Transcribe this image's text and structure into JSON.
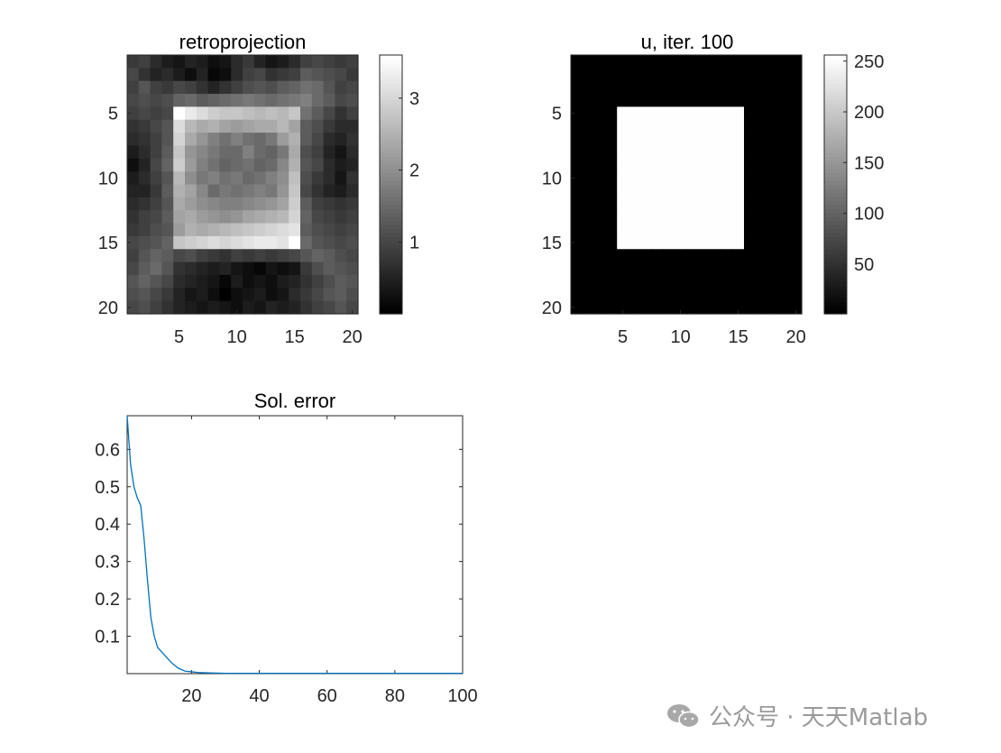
{
  "chart_data": [
    {
      "type": "heatmap",
      "title": "retroprojection",
      "xlim": [
        0.5,
        20.5
      ],
      "ylim": [
        0.5,
        20.5
      ],
      "xticks": [
        5,
        10,
        15,
        20
      ],
      "yticks": [
        5,
        10,
        15,
        20
      ],
      "y_direction": "reverse",
      "colormap": "gray",
      "colorbar": {
        "range": [
          0,
          3.6
        ],
        "ticks": [
          1,
          2,
          3
        ]
      },
      "matrix": [
        [
          0.8,
          0.9,
          0.6,
          0.4,
          0.3,
          0.5,
          0.4,
          0.2,
          0.3,
          0.6,
          0.8,
          0.5,
          0.3,
          0.4,
          0.6,
          0.9,
          1.0,
          0.9,
          0.8,
          0.9
        ],
        [
          1.0,
          0.7,
          0.5,
          0.6,
          0.4,
          0.2,
          0.5,
          0.1,
          0.2,
          0.6,
          0.9,
          1.0,
          0.7,
          0.8,
          0.9,
          1.3,
          1.2,
          1.1,
          1.0,
          0.8
        ],
        [
          0.9,
          1.2,
          0.9,
          0.8,
          1.0,
          0.9,
          0.7,
          0.5,
          0.7,
          0.9,
          1.1,
          1.2,
          1.1,
          1.3,
          1.4,
          1.6,
          1.5,
          1.2,
          0.9,
          1.0
        ],
        [
          1.0,
          1.1,
          1.0,
          1.1,
          1.4,
          1.5,
          1.3,
          1.4,
          1.5,
          1.6,
          1.7,
          1.6,
          1.5,
          1.6,
          1.7,
          1.8,
          1.5,
          1.3,
          1.0,
          1.1
        ],
        [
          0.9,
          1.0,
          0.9,
          1.0,
          3.6,
          3.3,
          3.1,
          2.9,
          2.8,
          2.8,
          2.7,
          2.6,
          2.7,
          2.6,
          2.8,
          1.6,
          1.3,
          1.0,
          0.7,
          0.9
        ],
        [
          0.7,
          0.8,
          1.0,
          1.2,
          3.1,
          2.6,
          2.4,
          2.5,
          2.3,
          2.2,
          2.3,
          2.4,
          2.4,
          2.6,
          2.3,
          1.3,
          1.1,
          0.8,
          0.6,
          0.6
        ],
        [
          0.6,
          0.7,
          0.9,
          1.2,
          3.0,
          2.4,
          2.1,
          1.8,
          1.6,
          1.8,
          1.6,
          1.5,
          1.7,
          2.2,
          2.5,
          1.3,
          1.0,
          0.6,
          0.5,
          0.7
        ],
        [
          0.4,
          0.6,
          0.9,
          1.3,
          2.8,
          2.1,
          1.9,
          1.7,
          1.5,
          1.5,
          1.8,
          1.5,
          1.4,
          1.7,
          2.4,
          1.1,
          0.9,
          0.5,
          0.3,
          0.6
        ],
        [
          0.2,
          0.5,
          1.0,
          1.4,
          2.9,
          2.2,
          1.8,
          1.6,
          1.4,
          1.5,
          1.6,
          1.4,
          1.5,
          1.9,
          2.5,
          1.2,
          1.0,
          0.6,
          0.4,
          0.5
        ],
        [
          0.4,
          0.6,
          0.9,
          1.2,
          2.6,
          2.0,
          1.7,
          1.8,
          1.6,
          1.7,
          1.5,
          1.6,
          1.8,
          2.0,
          2.7,
          1.1,
          0.8,
          0.6,
          0.3,
          0.7
        ],
        [
          0.5,
          0.5,
          0.8,
          1.3,
          2.5,
          2.3,
          1.9,
          1.5,
          1.7,
          1.6,
          1.7,
          1.8,
          1.7,
          2.1,
          2.8,
          1.0,
          0.7,
          0.5,
          0.4,
          0.6
        ],
        [
          0.6,
          0.7,
          0.9,
          1.2,
          2.4,
          2.2,
          2.0,
          1.9,
          1.8,
          1.8,
          1.9,
          2.0,
          2.1,
          2.3,
          2.9,
          1.3,
          0.9,
          0.8,
          0.7,
          0.8
        ],
        [
          0.7,
          0.9,
          1.0,
          1.3,
          2.3,
          2.4,
          2.2,
          2.1,
          2.0,
          2.1,
          2.3,
          2.4,
          2.5,
          2.6,
          3.0,
          1.4,
          1.0,
          0.9,
          0.8,
          0.9
        ],
        [
          0.8,
          0.9,
          1.1,
          1.2,
          2.2,
          2.5,
          2.4,
          2.5,
          2.6,
          2.7,
          2.8,
          2.9,
          3.0,
          3.1,
          3.2,
          1.3,
          1.1,
          1.0,
          0.9,
          1.0
        ],
        [
          1.0,
          1.1,
          1.2,
          1.4,
          2.8,
          2.9,
          3.0,
          3.1,
          3.0,
          3.1,
          3.2,
          3.3,
          3.3,
          3.2,
          3.6,
          1.5,
          1.2,
          1.1,
          1.0,
          1.1
        ],
        [
          0.9,
          1.2,
          1.4,
          1.3,
          1.0,
          1.1,
          0.9,
          0.8,
          0.7,
          0.9,
          0.8,
          0.9,
          0.8,
          0.9,
          1.0,
          1.2,
          1.4,
          1.3,
          1.1,
          1.0
        ],
        [
          1.0,
          1.3,
          1.5,
          1.2,
          0.7,
          0.6,
          0.5,
          0.4,
          0.5,
          0.3,
          0.2,
          0.1,
          0.3,
          0.2,
          0.3,
          0.8,
          1.1,
          1.3,
          1.2,
          1.1
        ],
        [
          1.2,
          1.4,
          1.2,
          1.0,
          0.6,
          0.5,
          0.4,
          0.3,
          0.1,
          0.4,
          0.2,
          0.3,
          0.2,
          0.4,
          0.5,
          0.7,
          0.9,
          1.1,
          1.3,
          1.2
        ],
        [
          1.1,
          1.2,
          1.0,
          0.8,
          0.5,
          0.3,
          0.4,
          0.2,
          0.0,
          0.2,
          0.3,
          0.4,
          0.2,
          0.3,
          0.6,
          0.8,
          1.0,
          1.2,
          1.3,
          1.1
        ],
        [
          1.0,
          1.1,
          0.9,
          0.7,
          0.5,
          0.4,
          0.3,
          0.4,
          0.3,
          0.2,
          0.4,
          0.3,
          0.5,
          0.4,
          0.5,
          0.7,
          0.9,
          1.0,
          1.2,
          1.0
        ]
      ]
    },
    {
      "type": "heatmap",
      "title": "u, iter. 100",
      "xlim": [
        0.5,
        20.5
      ],
      "ylim": [
        0.5,
        20.5
      ],
      "xticks": [
        5,
        10,
        15,
        20
      ],
      "yticks": [
        5,
        10,
        15,
        20
      ],
      "y_direction": "reverse",
      "colormap": "gray",
      "colorbar": {
        "range": [
          1,
          256
        ],
        "ticks": [
          50,
          100,
          150,
          200,
          250
        ]
      },
      "background_value": 1,
      "square": {
        "rows": [
          5,
          15
        ],
        "cols": [
          5,
          15
        ],
        "value": 255
      }
    },
    {
      "type": "line",
      "title": "Sol. error",
      "xlabel": "",
      "ylabel": "",
      "xlim": [
        1,
        100
      ],
      "ylim": [
        0,
        0.69
      ],
      "xticks": [
        20,
        40,
        60,
        80,
        100
      ],
      "yticks": [
        0.1,
        0.2,
        0.3,
        0.4,
        0.5,
        0.6
      ],
      "series": [
        {
          "color": "#0072BD",
          "x": [
            1,
            2,
            3,
            4,
            5,
            6,
            7,
            8,
            9,
            10,
            11,
            12,
            13,
            14,
            16,
            18,
            20,
            22,
            25,
            30,
            40,
            50,
            60,
            70,
            80,
            90,
            100
          ],
          "y": [
            0.69,
            0.56,
            0.5,
            0.47,
            0.45,
            0.36,
            0.25,
            0.15,
            0.1,
            0.07,
            0.06,
            0.05,
            0.04,
            0.03,
            0.015,
            0.007,
            0.005,
            0.003,
            0.002,
            0.001,
            0.001,
            0.001,
            0.001,
            0.001,
            0.001,
            0.001,
            0.001
          ]
        }
      ]
    }
  ],
  "watermark": {
    "text": "公众号 · 天天Matlab",
    "icon": "wechat-icon"
  }
}
